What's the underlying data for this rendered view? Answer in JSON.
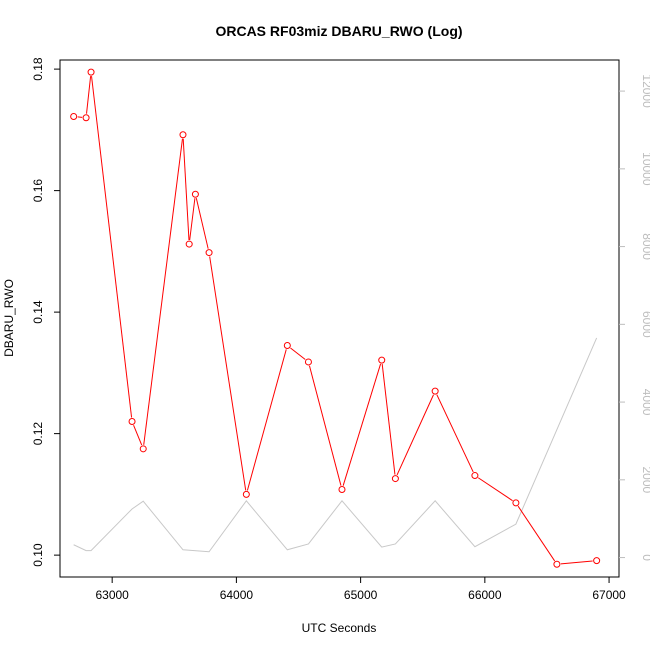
{
  "chart_data": {
    "type": "line",
    "title": "ORCAS RF03miz DBARU_RWO (Log)",
    "xlabel": "UTC Seconds",
    "ylabel": "DBARU_RWO",
    "y2label": "",
    "xlim": [
      62580,
      67080
    ],
    "ylim": [
      0.0964,
      0.1815
    ],
    "y2lim": [
      -500,
      12800
    ],
    "x_ticks": [
      63000,
      64000,
      65000,
      66000,
      67000
    ],
    "y_ticks": [
      0.1,
      0.12,
      0.14,
      0.16,
      0.18
    ],
    "y2_ticks": [
      0,
      2000,
      4000,
      6000,
      8000,
      10000,
      12000
    ],
    "grid": false,
    "colors": {
      "series": "#ff0000",
      "secondary": "#c8c8c8",
      "axis": "#000000",
      "right_axis": "#bdbdbd"
    },
    "series": [
      {
        "axis": "left",
        "style": "line+open-circle",
        "x": [
          62690,
          62790,
          62830,
          63160,
          63250,
          63570,
          63620,
          63670,
          63780,
          64080,
          64410,
          64580,
          64850,
          65170,
          65280,
          65600,
          65920,
          66250,
          66580,
          66900
        ],
        "values": [
          0.1722,
          0.172,
          0.1795,
          0.122,
          0.1175,
          0.1692,
          0.1512,
          0.1594,
          0.1498,
          0.11,
          0.1345,
          0.1318,
          0.1108,
          0.1321,
          0.1126,
          0.127,
          0.1131,
          0.1086,
          0.0985,
          0.0991
        ]
      },
      {
        "axis": "right",
        "style": "line",
        "x": [
          62690,
          62790,
          62830,
          63160,
          63250,
          63570,
          63780,
          64080,
          64410,
          64580,
          64850,
          65170,
          65280,
          65600,
          65920,
          66250,
          66900
        ],
        "values": [
          330,
          180,
          180,
          1250,
          1450,
          200,
          150,
          1460,
          200,
          350,
          1460,
          270,
          350,
          1460,
          280,
          860,
          5650
        ]
      }
    ]
  }
}
